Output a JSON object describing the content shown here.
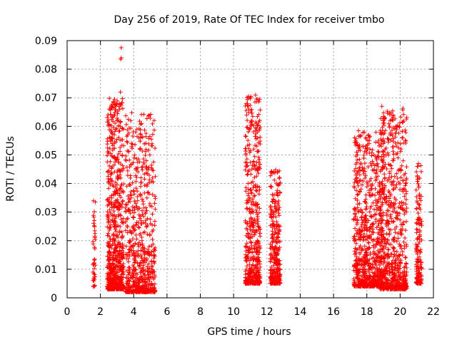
{
  "chart_data": {
    "type": "scatter",
    "title": "Day 256 of 2019, Rate Of TEC Index for receiver tmbo",
    "xlabel": "GPS time / hours",
    "ylabel": "ROTI / TECUs",
    "xlim": [
      0,
      22
    ],
    "ylim": [
      0,
      0.09
    ],
    "x_ticks": [
      "0",
      "2",
      "4",
      "6",
      "8",
      "10",
      "12",
      "14",
      "16",
      "18",
      "20",
      "22"
    ],
    "y_ticks": [
      "0",
      "0.01",
      "0.02",
      "0.03",
      "0.04",
      "0.05",
      "0.06",
      "0.07",
      "0.08",
      "0.09"
    ],
    "grid": true,
    "marker": "+",
    "color": "#ff0000",
    "clusters": [
      {
        "x_range": [
          1.55,
          1.7
        ],
        "y_range": [
          0.004,
          0.035
        ],
        "count": 40
      },
      {
        "x_range": [
          2.4,
          3.4
        ],
        "y_range": [
          0.003,
          0.07
        ],
        "count": 700
      },
      {
        "x_range": [
          3.5,
          5.3
        ],
        "y_range": [
          0.002,
          0.065
        ],
        "count": 650
      },
      {
        "x_range": [
          10.7,
          11.6
        ],
        "y_range": [
          0.005,
          0.071
        ],
        "count": 500
      },
      {
        "x_range": [
          12.2,
          12.8
        ],
        "y_range": [
          0.005,
          0.045
        ],
        "count": 300
      },
      {
        "x_range": [
          17.2,
          19.0
        ],
        "y_range": [
          0.004,
          0.058
        ],
        "count": 800
      },
      {
        "x_range": [
          18.8,
          20.4
        ],
        "y_range": [
          0.003,
          0.067
        ],
        "count": 700
      },
      {
        "x_range": [
          20.95,
          21.3
        ],
        "y_range": [
          0.005,
          0.047
        ],
        "count": 150
      }
    ],
    "peaks": [
      {
        "x": 3.25,
        "y": 0.0875
      },
      {
        "x": 3.25,
        "y": 0.084
      },
      {
        "x": 3.22,
        "y": 0.0835
      },
      {
        "x": 3.2,
        "y": 0.072
      },
      {
        "x": 2.85,
        "y": 0.0695
      },
      {
        "x": 10.9,
        "y": 0.0705
      },
      {
        "x": 18.9,
        "y": 0.067
      },
      {
        "x": 17.5,
        "y": 0.0585
      },
      {
        "x": 19.9,
        "y": 0.0525
      },
      {
        "x": 21.1,
        "y": 0.047
      }
    ]
  }
}
